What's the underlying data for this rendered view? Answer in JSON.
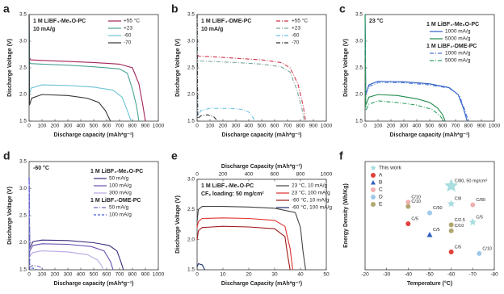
{
  "chart_data": [
    {
      "type": "line",
      "panel_label": "a",
      "xlabel": "Discharge capacity (mAh*g⁻¹)",
      "ylabel": "Discharge Voltage (V)",
      "annotations": [
        "1 M LiBF₄-Me₂O-PC",
        "10 mA/g"
      ],
      "xlim": [
        0,
        1000
      ],
      "xticks": [
        0,
        100,
        200,
        300,
        400,
        500,
        600,
        700,
        800,
        900,
        1000
      ],
      "ylim": [
        1.5,
        3.5
      ],
      "yticks": [
        1.5,
        {
          "value": 2,
          "label": "2.0"
        },
        2.5,
        {
          "value": 3,
          "label": "3.0"
        },
        3.5
      ],
      "series": [
        {
          "name": "+55 °C",
          "color": "#a3245a",
          "line_style": "solid",
          "x": [
            0,
            3,
            10,
            100,
            300,
            500,
            700,
            800,
            850,
            880,
            900
          ],
          "values": [
            3.5,
            2.7,
            2.65,
            2.64,
            2.62,
            2.6,
            2.57,
            2.5,
            2.2,
            1.8,
            1.5
          ]
        },
        {
          "name": "+23",
          "color": "#4aa394",
          "line_style": "solid",
          "x": [
            0,
            3,
            10,
            100,
            300,
            500,
            700,
            760,
            800,
            830,
            850
          ],
          "values": [
            3.5,
            2.62,
            2.58,
            2.57,
            2.55,
            2.52,
            2.48,
            2.4,
            2.1,
            1.8,
            1.5
          ]
        },
        {
          "name": "-60",
          "color": "#6cc3d5",
          "line_style": "solid",
          "x": [
            0,
            3,
            15,
            100,
            300,
            500,
            650,
            720,
            760,
            790
          ],
          "values": [
            3.5,
            2.0,
            2.12,
            2.18,
            2.17,
            2.14,
            2.08,
            1.95,
            1.7,
            1.5
          ]
        },
        {
          "name": "-70",
          "color": "#333333",
          "line_style": "solid",
          "x": [
            0,
            3,
            20,
            100,
            300,
            450,
            540,
            590,
            630
          ],
          "values": [
            3.5,
            1.8,
            1.93,
            2.0,
            1.98,
            1.93,
            1.85,
            1.7,
            1.5
          ]
        }
      ]
    },
    {
      "type": "line",
      "panel_label": "b",
      "xlabel": "Discharge capacity (mAh*g⁻¹)",
      "ylabel": "Discharge Voltage (V)",
      "annotations": [
        "1 M LiBF₄-DME-PC",
        "10 mA/g"
      ],
      "xlim": [
        0,
        1000
      ],
      "xticks": [
        0,
        100,
        200,
        300,
        400,
        500,
        600,
        700,
        800,
        900,
        1000
      ],
      "ylim": [
        1.5,
        3.5
      ],
      "yticks": [
        1.5,
        {
          "value": 2,
          "label": "2.0"
        },
        2.5,
        {
          "value": 3,
          "label": "3.0"
        },
        3.5
      ],
      "series": [
        {
          "name": "+55 °C",
          "color": "#d0344a",
          "line_style": "dashdot",
          "x": [
            0,
            3,
            10,
            100,
            300,
            500,
            650,
            720,
            780,
            820,
            840
          ],
          "values": [
            3.5,
            2.75,
            2.72,
            2.71,
            2.68,
            2.65,
            2.6,
            2.5,
            2.2,
            1.8,
            1.5
          ]
        },
        {
          "name": "+23",
          "color": "#7da89e",
          "line_style": "dashdot",
          "x": [
            0,
            3,
            10,
            100,
            300,
            500,
            650,
            720,
            770,
            810,
            830
          ],
          "values": [
            3.5,
            2.66,
            2.63,
            2.62,
            2.6,
            2.57,
            2.52,
            2.42,
            2.1,
            1.75,
            1.5
          ]
        },
        {
          "name": "-60",
          "color": "#6cbfe6",
          "line_style": "dashdot",
          "x": [
            0,
            5,
            30,
            100,
            250,
            350,
            400,
            430,
            450
          ],
          "values": [
            3.5,
            1.6,
            1.7,
            1.74,
            1.74,
            1.72,
            1.67,
            1.58,
            1.5
          ]
        },
        {
          "name": "-70",
          "color": "#333333",
          "line_style": "dashdot",
          "x": [
            0,
            5,
            30,
            80,
            130,
            160
          ],
          "values": [
            3.5,
            1.55,
            1.6,
            1.62,
            1.58,
            1.5
          ]
        }
      ]
    },
    {
      "type": "line",
      "panel_label": "c",
      "xlabel": "Discharge capacity (mAh*g⁻¹)",
      "ylabel": "Discharge Voltage (V)",
      "annotations": [
        "23 °C"
      ],
      "xlim": [
        0,
        1000
      ],
      "xticks": [
        0,
        100,
        200,
        300,
        400,
        500,
        600,
        700,
        800,
        900,
        1000
      ],
      "ylim": [
        1.5,
        3.5
      ],
      "yticks": [
        1.5,
        {
          "value": 2,
          "label": "2.0"
        },
        2.5,
        {
          "value": 3,
          "label": "3.0"
        },
        3.5
      ],
      "groups": [
        {
          "name": "1 M LiBF₄-Me₂O-PC",
          "series": [
            {
              "name": "1000 mA/g",
              "color": "#2a5cc0",
              "line_style": "solid",
              "x": [
                0,
                5,
                30,
                100,
                300,
                500,
                650,
                720,
                760,
                790
              ],
              "values": [
                3.5,
                2.0,
                2.18,
                2.25,
                2.24,
                2.2,
                2.13,
                2.0,
                1.75,
                1.5
              ]
            },
            {
              "name": "5000 mA/g",
              "color": "#1f8a4a",
              "line_style": "solid",
              "x": [
                0,
                5,
                30,
                100,
                250,
                400,
                500,
                560,
                600,
                620
              ],
              "values": [
                3.5,
                1.8,
                1.95,
                2.0,
                1.98,
                1.92,
                1.85,
                1.75,
                1.62,
                1.5
              ]
            }
          ]
        },
        {
          "name": "1 M LiBF₄-DME-PC",
          "series": [
            {
              "name": "1000 mA/g",
              "color": "#4a78d8",
              "line_style": "dashdot",
              "x": [
                0,
                5,
                30,
                100,
                300,
                500,
                650,
                730,
                770,
                800
              ],
              "values": [
                3.5,
                2.0,
                2.15,
                2.22,
                2.22,
                2.18,
                2.12,
                1.98,
                1.72,
                1.5
              ]
            },
            {
              "name": "5000 mA/g",
              "color": "#2ea060",
              "line_style": "dashdot",
              "x": [
                0,
                5,
                30,
                100,
                250,
                400,
                520,
                580,
                610
              ],
              "values": [
                3.5,
                1.7,
                1.82,
                1.88,
                1.85,
                1.8,
                1.72,
                1.6,
                1.5
              ]
            }
          ]
        }
      ]
    },
    {
      "type": "line",
      "panel_label": "d",
      "xlabel": "Discharge capacity (mAh*g⁻¹)",
      "ylabel": "Discharge Voltage (V)",
      "annotations": [
        "-60 °C"
      ],
      "xlim": [
        0,
        1000
      ],
      "xticks": [
        0,
        100,
        200,
        300,
        400,
        500,
        600,
        700,
        800,
        900,
        1000
      ],
      "ylim": [
        1.5,
        3.5
      ],
      "yticks": [
        1.5,
        {
          "value": 2,
          "label": "2.0"
        },
        2.5,
        {
          "value": 3,
          "label": "3.0"
        },
        3.5
      ],
      "groups": [
        {
          "name": "1 M LiBF₄-Me₂O-PC",
          "series": [
            {
              "name": "50 mA/g",
              "color": "#3b2a7a",
              "line_style": "solid",
              "x": [
                0,
                5,
                30,
                100,
                300,
                500,
                620,
                680,
                710,
                730
              ],
              "values": [
                3.2,
                1.9,
                2.02,
                2.05,
                2.04,
                2.0,
                1.95,
                1.85,
                1.65,
                1.5
              ]
            },
            {
              "name": "100 mA/g",
              "color": "#6a4fb0",
              "line_style": "solid",
              "x": [
                0,
                5,
                30,
                100,
                300,
                480,
                580,
                630,
                650
              ],
              "values": [
                3.2,
                1.85,
                1.95,
                1.98,
                1.97,
                1.93,
                1.85,
                1.65,
                1.5
              ]
            },
            {
              "name": "300 mA/g",
              "color": "#b9a6e3",
              "line_style": "solid",
              "x": [
                0,
                5,
                30,
                100,
                300,
                450,
                530,
                560,
                575
              ],
              "values": [
                3.2,
                1.75,
                1.82,
                1.85,
                1.83,
                1.78,
                1.68,
                1.58,
                1.5
              ]
            }
          ]
        },
        {
          "name": "1 M LiBF₄-DME-PC",
          "series": [
            {
              "name": "50 mA/g",
              "color": "#7a5fb8",
              "line_style": "dashdot",
              "x": [
                0,
                5,
                30,
                80,
                120
              ],
              "values": [
                3.2,
                1.55,
                1.58,
                1.56,
                1.5
              ]
            },
            {
              "name": "100 mA/g",
              "color": "#4a5fd8",
              "line_style": "dash",
              "x": [
                0,
                5,
                30,
                60
              ],
              "values": [
                3.2,
                1.52,
                1.53,
                1.5
              ]
            }
          ]
        }
      ]
    },
    {
      "type": "line",
      "panel_label": "e",
      "xlabel": "Discharge Capacity (mAh*g⁻¹)",
      "ylabel": "Discharge Voltage (V)",
      "x2label": "Discharge Capacity (mAh*g⁻¹)",
      "annotations": [
        "1 M LiBF₄-Me₂O-PC",
        "CFₓ loading: 50 mg/cm²"
      ],
      "xlim": [
        0,
        50
      ],
      "xticks": [
        0,
        10,
        20,
        30,
        40,
        50
      ],
      "x2lim": [
        0,
        1000
      ],
      "x2ticks": [
        0,
        200,
        400,
        600,
        800,
        1000
      ],
      "ylim": [
        1.5,
        3.0
      ],
      "yticks": [
        1.5,
        {
          "value": 2,
          "label": "2.0"
        },
        2.5,
        {
          "value": 3,
          "label": "3.0"
        }
      ],
      "series": [
        {
          "name": "23 °C, 10 mA/g",
          "color": "#444444",
          "line_style": "solid",
          "x": [
            0,
            0.5,
            2,
            10,
            20,
            30,
            38,
            40,
            41,
            42
          ],
          "values": [
            2.3,
            2.5,
            2.55,
            2.55,
            2.54,
            2.52,
            2.45,
            2.2,
            1.8,
            1.5
          ]
        },
        {
          "name": "23 °C, 100 mA/g",
          "color": "#e03030",
          "line_style": "solid",
          "x": [
            0,
            0.5,
            2,
            10,
            20,
            30,
            34,
            36,
            37
          ],
          "values": [
            2.2,
            2.3,
            2.35,
            2.36,
            2.35,
            2.32,
            2.22,
            1.85,
            1.5
          ]
        },
        {
          "name": "-60 °C, 10 mA/g",
          "color": "#a01818",
          "line_style": "solid",
          "x": [
            0,
            0.5,
            2,
            10,
            20,
            30,
            34,
            35,
            36
          ],
          "values": [
            2.0,
            2.15,
            2.2,
            2.22,
            2.21,
            2.18,
            2.05,
            1.75,
            1.5
          ]
        },
        {
          "name": "-60 °C, 100 mA/g",
          "color": "#1c2d6b",
          "line_style": "solid",
          "x": [
            0,
            0.5,
            2,
            3
          ],
          "values": [
            1.55,
            1.6,
            1.58,
            1.5
          ]
        }
      ]
    },
    {
      "type": "scatter",
      "panel_label": "f",
      "xlabel": "Temperature (°C)",
      "ylabel": "Energy Density (Wh/Kg)",
      "xlim": [
        -20,
        -80
      ],
      "xticks": [
        -20,
        -30,
        -40,
        -50,
        -60,
        -70,
        -80
      ],
      "ylim": [
        0,
        2000
      ],
      "series": [
        {
          "name": "This work",
          "color": "#a8dde0",
          "marker": "star",
          "x": [
            -60,
            -60,
            -70
          ],
          "values": [
            1550,
            1220,
            880
          ],
          "point_labels": [
            "C/80, 50 mg/cm²",
            "C/8",
            "C/5"
          ]
        },
        {
          "name": "A",
          "color": "#e0403a",
          "marker": "circle",
          "x": [
            -40,
            -60
          ],
          "values": [
            850,
            330
          ],
          "point_labels": [
            "C/5",
            "C/5"
          ]
        },
        {
          "name": "B",
          "color": "#3060c0",
          "marker": "triangle",
          "x": [
            -50
          ],
          "values": [
            650
          ],
          "point_labels": [
            "C/5"
          ]
        },
        {
          "name": "C",
          "color": "#f0b0b0",
          "marker": "circle",
          "x": [
            -40,
            -70
          ],
          "values": [
            1250,
            1200
          ],
          "point_labels": [
            "C/10",
            "C/80"
          ]
        },
        {
          "name": "D",
          "color": "#a0c8e8",
          "marker": "circle",
          "x": [
            -50,
            -73
          ],
          "values": [
            1050,
            300
          ],
          "point_labels": [
            "C/50",
            "C/10"
          ]
        },
        {
          "name": "E",
          "color": "#b0a870",
          "marker": "circle",
          "x": [
            -40,
            -60,
            -60
          ],
          "values": [
            1170,
            830,
            720
          ],
          "point_labels": [
            "C/10",
            "C/2.5",
            "C/10"
          ]
        }
      ]
    }
  ]
}
